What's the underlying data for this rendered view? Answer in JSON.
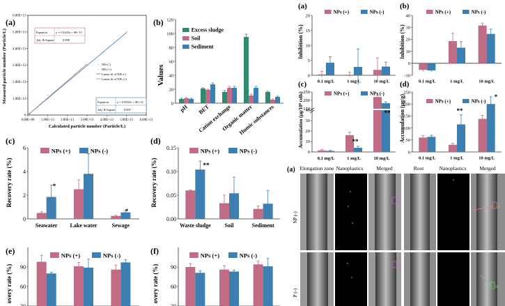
{
  "colors": {
    "pos": "#c06c84",
    "neg": "#3d7fb0",
    "bar_b_sludge": "#2f8a6e",
    "bar_b_soil": "#c06c84",
    "bar_b_sed": "#3d7fb0"
  },
  "legend": {
    "pos": "NPs (+)",
    "neg": "NPs (-)"
  },
  "chart_data": [
    {
      "id": "a_left",
      "panel_label": "(a)",
      "type": "scatter",
      "xlabel": "Calculated particle number (Particle/L)",
      "ylabel": "Measured particle number (Particle/L)",
      "x_ticks": [
        "0.00E+00",
        "1.00E+13",
        "2.00E+13",
        "3.00E+13",
        "4.00E+13",
        "5.00E+13",
        "6.00E+13"
      ],
      "y_ticks": [
        "0",
        "1.00E+13",
        "2.00E+13",
        "3.00E+13",
        "4.00E+13",
        "5.00E+13",
        "6.00E+13"
      ],
      "xlim": [
        0,
        60000000000000.0
      ],
      "ylim": [
        0,
        60000000000000.0
      ],
      "series": [
        {
          "name": "NPs (-)",
          "x": [
            200000000000.0,
            500000000000.0,
            1000000000000.0,
            5000000000000.0,
            10000000000000.0,
            50000000000000.0
          ],
          "y": [
            200000000000.0,
            500000000000.0,
            1000000000000.0,
            4500000000000.0,
            9500000000000.0,
            50000000000000.0
          ]
        },
        {
          "name": "NPs (+)",
          "x": [
            200000000000.0,
            500000000000.0,
            1000000000000.0,
            10000000000000.0,
            30000000000000.0
          ],
          "y": [
            200000000000.0,
            400000000000.0,
            1000000000000.0,
            12000000000000.0,
            30000000000000.0
          ]
        }
      ],
      "fit_lines": [
        {
          "name": "Linear fit of NPs (-)",
          "slope": 0.9932,
          "intercept": 0
        },
        {
          "name": "Linear fit of NPs (+)",
          "slope": 1.0243,
          "intercept": 0
        }
      ],
      "equation_boxes": [
        {
          "equation_label": "Equation",
          "equation": "y = 1.0243x + 0E+13",
          "r2_label": "Adj. R-Square",
          "r2": "0.998"
        },
        {
          "equation_label": "Equation",
          "equation": "y = 0.9932x + 0E+13",
          "r2_label": "Adj. R-Square",
          "r2": "0.997"
        }
      ]
    },
    {
      "id": "b_left",
      "panel_label": "(b)",
      "type": "bar",
      "ylabel": "Values",
      "categories": [
        "pH",
        "BET",
        "Cation exchange",
        "Organic matter",
        "Humic substances"
      ],
      "ylim": [
        0,
        120
      ],
      "y_ticks": [
        "0",
        "20",
        "40",
        "60",
        "80",
        "100",
        "120"
      ],
      "series": [
        {
          "name": "Excess sludge",
          "values": [
            6,
            21,
            16,
            95,
            16
          ],
          "errors": [
            1,
            1,
            2,
            4,
            1
          ]
        },
        {
          "name": "Soil",
          "values": [
            7,
            19,
            22,
            11,
            5
          ],
          "errors": [
            1,
            1,
            2,
            2,
            1
          ]
        },
        {
          "name": "Sediment",
          "values": [
            6,
            27,
            22,
            22,
            9
          ],
          "errors": [
            1,
            2,
            2,
            2,
            1
          ]
        }
      ]
    },
    {
      "id": "a_right",
      "panel_label": "(a)",
      "type": "bar",
      "ylabel": "Inhibition (%)",
      "categories": [
        "0.1 mg/L",
        "1 mg/L",
        "10 mg/L"
      ],
      "ylim": [
        0,
        20
      ],
      "y_ticks": [
        "0",
        "5",
        "10",
        "15",
        "20"
      ],
      "series": [
        {
          "name": "NPs (+)",
          "values": [
            0.3,
            0.2,
            1.8
          ],
          "errors": [
            1.0,
            0.8,
            4.0
          ]
        },
        {
          "name": "NPs (-)",
          "values": [
            4.2,
            2.8,
            2.9
          ],
          "errors": [
            2.0,
            6.0,
            1.5
          ]
        }
      ]
    },
    {
      "id": "b_right",
      "panel_label": "(b)",
      "type": "bar",
      "ylabel": "Inhibition (%)",
      "categories": [
        "0.1 mg/L",
        "1 mg/L",
        "10 mg/L"
      ],
      "ylim": [
        -10,
        40
      ],
      "y_ticks": [
        "-10",
        "0",
        "10",
        "20",
        "30",
        "40"
      ],
      "series": [
        {
          "name": "NPs (+)",
          "values": [
            -5.5,
            18.5,
            31.5
          ],
          "errors": [
            1.5,
            6.5,
            2.0
          ]
        },
        {
          "name": "NPs (-)",
          "values": [
            -6.0,
            13.0,
            24.5
          ],
          "errors": [
            1.0,
            5.0,
            4.0
          ]
        }
      ]
    },
    {
      "id": "c_right",
      "panel_label": "(c)",
      "type": "bar",
      "ylabel": "Accumulation (μg/10⁸ cells)",
      "categories": [
        "0.1 mg/L",
        "1 mg/L",
        "10 mg/L"
      ],
      "y_ticks": [
        "0",
        "10",
        "20",
        "30",
        "40",
        "150",
        "200",
        "250"
      ],
      "series": [
        {
          "name": "NPs (+)",
          "values": [
            1.5,
            16,
            220
          ],
          "errors": [
            0.8,
            3,
            12
          ]
        },
        {
          "name": "NPs (-)",
          "values": [
            1.0,
            4,
            183
          ],
          "errors": [
            0.5,
            1.5,
            8
          ]
        }
      ],
      "annotations": [
        "**",
        "**"
      ]
    },
    {
      "id": "d_right",
      "panel_label": "(d)",
      "type": "bar",
      "ylabel": "Accumulation (μg/g)",
      "categories": [
        "0.1 mg/L",
        "1 mg/L",
        "10 mg/L"
      ],
      "ylim": [
        0,
        250
      ],
      "y_ticks": [
        "0",
        "50",
        "100",
        "150",
        "200",
        "250"
      ],
      "series": [
        {
          "name": "NPs (+)",
          "values": [
            60,
            30,
            138
          ],
          "errors": [
            8,
            6,
            15
          ]
        },
        {
          "name": "NPs (-)",
          "values": [
            63,
            115,
            200
          ],
          "errors": [
            6,
            40,
            30
          ]
        }
      ],
      "annotations": [
        "**",
        "*"
      ]
    },
    {
      "id": "c_left",
      "panel_label": "(c)",
      "type": "bar",
      "ylabel": "Recovery rate (%)",
      "categories": [
        "Seawater",
        "Lake water",
        "Sewage"
      ],
      "ylim": [
        0,
        6
      ],
      "y_ticks": [
        "0",
        "2",
        "4",
        "6"
      ],
      "series": [
        {
          "name": "NPs (+)",
          "values": [
            0.5,
            2.5,
            0.25
          ],
          "errors": [
            0.1,
            0.8,
            0.05
          ]
        },
        {
          "name": "NPs (-)",
          "values": [
            1.85,
            3.8,
            0.55
          ],
          "errors": [
            1.0,
            1.7,
            0.15
          ]
        }
      ],
      "annotations": [
        "*",
        "*"
      ]
    },
    {
      "id": "d_left",
      "panel_label": "(d)",
      "type": "bar",
      "ylabel": "Recovery rate (%)",
      "categories": [
        "Waste sludge",
        "Soil",
        "Sediment"
      ],
      "ylim": [
        0,
        0.15
      ],
      "y_ticks": [
        "0.00",
        "0.05",
        "0.10",
        "0.15"
      ],
      "series": [
        {
          "name": "NPs (+)",
          "values": [
            0.06,
            0.033,
            0.021
          ],
          "errors": [
            0.001,
            0.017,
            0.006
          ]
        },
        {
          "name": "NPs (-)",
          "values": [
            0.104,
            0.054,
            0.032
          ],
          "errors": [
            0.018,
            0.034,
            0.028
          ]
        }
      ],
      "annotations": [
        "**"
      ]
    },
    {
      "id": "e_left",
      "panel_label": "(e)",
      "type": "bar",
      "ylabel": "overy rate (%)",
      "categories": [
        "",
        "",
        ""
      ],
      "ylim": [
        30,
        120
      ],
      "y_ticks": [
        "30",
        "60",
        "90"
      ],
      "series": [
        {
          "name": "NPs (+)",
          "values": [
            98,
            91,
            86
          ],
          "errors": [
            10,
            6,
            7
          ]
        },
        {
          "name": "NPs (-)",
          "values": [
            80,
            89,
            97
          ],
          "errors": [
            2,
            13,
            4
          ]
        }
      ]
    },
    {
      "id": "f_left",
      "panel_label": "(f)",
      "type": "bar",
      "ylabel": "overy rate (%)",
      "categories": [
        "",
        "",
        ""
      ],
      "ylim": [
        30,
        120
      ],
      "y_ticks": [
        "30",
        "60",
        "90"
      ],
      "series": [
        {
          "name": "NPs (+)",
          "values": [
            90,
            86,
            94
          ],
          "errors": [
            5,
            6,
            5
          ]
        },
        {
          "name": "NPs (-)",
          "values": [
            81,
            83,
            91
          ],
          "errors": [
            3,
            2,
            12
          ]
        }
      ]
    }
  ],
  "micrograph": {
    "panel_label": "(a)",
    "col_headers": [
      "Elongation zone",
      "Nanoplastics",
      "Merged",
      "Root",
      "Nanoplastics",
      "Merged"
    ],
    "row_labels": [
      "NP (-)",
      "P (-)"
    ],
    "markers": [
      "I",
      "II",
      "I",
      "II"
    ]
  }
}
